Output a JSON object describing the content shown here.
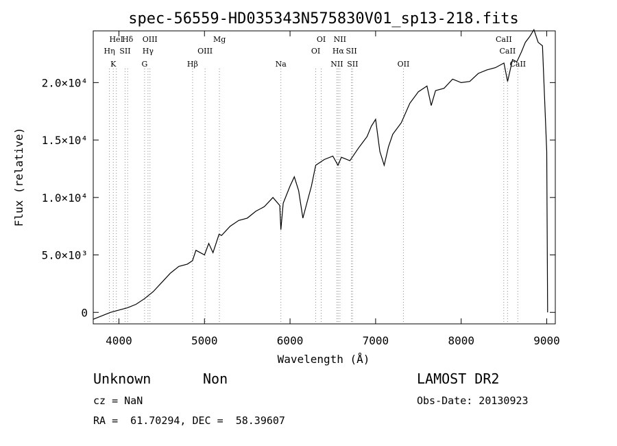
{
  "chart_data": {
    "type": "line",
    "title": "spec-56559-HD035343N575830V01_sp13-218.fits",
    "xlabel": "Wavelength (Å)",
    "ylabel": "Flux (relative)",
    "xlim": [
      3700,
      9100
    ],
    "ylim": [
      -1000,
      24500
    ],
    "x_ticks": [
      4000,
      5000,
      6000,
      7000,
      8000,
      9000
    ],
    "x_tick_labels": [
      "4000",
      "5000",
      "6000",
      "7000",
      "8000",
      "9000"
    ],
    "y_ticks": [
      0,
      5000,
      10000,
      15000,
      20000
    ],
    "y_tick_labels": [
      "0",
      "5.0×10³",
      "1.0×10⁴",
      "1.5×10⁴",
      "2.0×10⁴"
    ],
    "grid": false,
    "series": [
      {
        "x": [
          3700,
          3800,
          3900,
          4000,
          4100,
          4200,
          4300,
          4400,
          4500,
          4600,
          4700,
          4800,
          4860,
          4900,
          5000,
          5050,
          5100,
          5170,
          5200,
          5300,
          5400,
          5500,
          5600,
          5700,
          5800,
          5880,
          5893,
          5920,
          6000,
          6050,
          6100,
          6150,
          6200,
          6250,
          6300,
          6400,
          6500,
          6560,
          6600,
          6700,
          6800,
          6850,
          6900,
          6950,
          7000,
          7050,
          7100,
          7150,
          7200,
          7300,
          7400,
          7500,
          7600,
          7650,
          7700,
          7800,
          7900,
          8000,
          8100,
          8200,
          8300,
          8400,
          8500,
          8542,
          8600,
          8650,
          8700,
          8750,
          8800,
          8850,
          8900,
          8950,
          9000,
          9010
        ],
        "y": [
          -600,
          -300,
          0,
          200,
          400,
          700,
          1200,
          1800,
          2600,
          3400,
          4000,
          4200,
          4500,
          5400,
          5000,
          6000,
          5200,
          6800,
          6700,
          7500,
          8000,
          8200,
          8800,
          9200,
          10000,
          9300,
          7200,
          9500,
          11000,
          11800,
          10600,
          8200,
          9600,
          11000,
          12800,
          13300,
          13600,
          12800,
          13500,
          13200,
          14300,
          14800,
          15300,
          16200,
          16800,
          14000,
          12800,
          14400,
          15500,
          16500,
          18200,
          19200,
          19700,
          18000,
          19300,
          19500,
          20300,
          20000,
          20100,
          20800,
          21100,
          21300,
          21700,
          20100,
          22000,
          21800,
          22600,
          23500,
          24000,
          24600,
          23500,
          23200,
          14000,
          0
        ]
      }
    ],
    "line_markers": [
      {
        "wl": 3889,
        "tier": 1,
        "label": "Hη"
      },
      {
        "wl": 3934,
        "tier": 2,
        "label": "K"
      },
      {
        "wl": 3970,
        "tier": 0,
        "label": "HeI"
      },
      {
        "wl": 4072,
        "tier": 1,
        "label": "SII"
      },
      {
        "wl": 4102,
        "tier": 0,
        "label": "Hδ"
      },
      {
        "wl": 4300,
        "tier": 2,
        "label": "G"
      },
      {
        "wl": 4340,
        "tier": 1,
        "label": "Hγ"
      },
      {
        "wl": 4363,
        "tier": 0,
        "label": "OIII"
      },
      {
        "wl": 4861,
        "tier": 2,
        "label": "Hβ"
      },
      {
        "wl": 5007,
        "tier": 1,
        "label": "OIII"
      },
      {
        "wl": 5175,
        "tier": 0,
        "label": "Mg"
      },
      {
        "wl": 5893,
        "tier": 2,
        "label": "Na"
      },
      {
        "wl": 6300,
        "tier": 1,
        "label": "OI"
      },
      {
        "wl": 6364,
        "tier": 0,
        "label": "OI"
      },
      {
        "wl": 6548,
        "tier": 2,
        "label": "NII"
      },
      {
        "wl": 6563,
        "tier": 1,
        "label": "Hα"
      },
      {
        "wl": 6583,
        "tier": 0,
        "label": "NII"
      },
      {
        "wl": 6717,
        "tier": 1,
        "label": "SII"
      },
      {
        "wl": 6731,
        "tier": 2,
        "label": "SII"
      },
      {
        "wl": 7325,
        "tier": 2,
        "label": "OII"
      },
      {
        "wl": 8498,
        "tier": 0,
        "label": "CaII"
      },
      {
        "wl": 8542,
        "tier": 1,
        "label": "CaII"
      },
      {
        "wl": 8662,
        "tier": 2,
        "label": "CaII"
      }
    ]
  },
  "footer": {
    "object_name": "Unknown",
    "object_class": "Non",
    "survey": "LAMOST DR2",
    "redshift": "cz = NaN",
    "obs_date": "Obs-Date: 20130923",
    "coords": "RA =  61.70294, DEC =  58.39607"
  }
}
